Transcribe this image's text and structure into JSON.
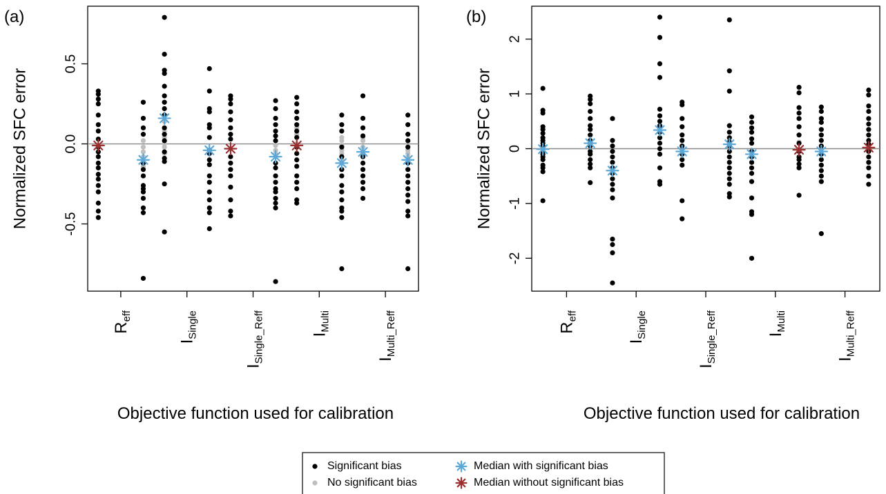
{
  "chart_data": [
    {
      "type": "scatter",
      "panel_label": "(a)",
      "xlabel": "Objective function used for calibration",
      "ylabel": "Normalized SFC error",
      "ylim": [
        -0.92,
        0.86
      ],
      "yticks": [
        -0.5,
        0.0,
        0.5
      ],
      "ytick_labels": [
        "-0.5",
        "0.0",
        "0.5"
      ],
      "reference_line": 0,
      "groups": [
        {
          "label_main": "R",
          "label_sub": "eff",
          "significant": [
            0.33,
            0.31,
            0.28,
            0.25,
            0.18,
            0.12,
            0.08,
            0.03,
            -0.02,
            -0.05,
            -0.08,
            -0.12,
            -0.15,
            -0.19,
            -0.22,
            -0.26,
            -0.3,
            -0.37,
            -0.42,
            -0.46
          ],
          "not_significant": [],
          "median": -0.01,
          "median_significant": false
        },
        {
          "label_main": "R",
          "label_sub": "eff",
          "significant": [
            0.26,
            0.16,
            0.1,
            0.06,
            -0.12,
            -0.16,
            -0.2,
            -0.26,
            -0.28,
            -0.3,
            -0.34,
            -0.4,
            -0.43,
            -0.84
          ],
          "not_significant": [
            0.02,
            -0.02,
            -0.05,
            -0.08,
            -0.14
          ],
          "median": -0.1,
          "median_significant": true
        },
        {
          "label_main": "I",
          "label_sub": "Single",
          "significant": [
            0.79,
            0.56,
            0.46,
            0.44,
            0.36,
            0.3,
            0.26,
            0.22,
            0.18,
            0.1,
            0.06,
            0.02,
            -0.05,
            -0.09,
            -0.11,
            -0.25,
            -0.55
          ],
          "not_significant": [
            0.14,
            0.08,
            0.04,
            0.0,
            -0.02,
            -0.06
          ],
          "median": 0.16,
          "median_significant": true
        },
        {
          "label_main": "I",
          "label_sub": "Single",
          "significant": [
            0.47,
            0.33,
            0.22,
            0.2,
            0.12,
            0.1,
            0.04,
            -0.04,
            -0.06,
            -0.1,
            -0.13,
            -0.2,
            -0.24,
            -0.3,
            -0.35,
            -0.4,
            -0.43,
            -0.53
          ],
          "not_significant": [],
          "median": -0.04,
          "median_significant": true
        },
        {
          "label_main": "I",
          "label_sub": "Single_Reff",
          "significant": [
            0.3,
            0.28,
            0.25,
            0.2,
            0.15,
            0.1,
            0.06,
            0.03,
            -0.08,
            -0.12,
            -0.16,
            -0.2,
            -0.27,
            -0.35,
            -0.42,
            -0.45
          ],
          "not_significant": [],
          "median": -0.03,
          "median_significant": false
        },
        {
          "label_main": "I",
          "label_sub": "Single_Reff",
          "significant": [
            0.27,
            0.22,
            0.16,
            0.12,
            0.08,
            0.05,
            0.02,
            -0.12,
            -0.15,
            -0.2,
            -0.24,
            -0.28,
            -0.3,
            -0.34,
            -0.37,
            -0.4,
            -0.86
          ],
          "not_significant": [
            -0.01,
            -0.04,
            -0.06
          ],
          "median": -0.08,
          "median_significant": true
        },
        {
          "label_main": "I",
          "label_sub": "Multi",
          "significant": [
            0.29,
            0.25,
            0.2,
            0.16,
            0.12,
            0.08,
            0.04,
            -0.02,
            -0.06,
            -0.1,
            -0.14,
            -0.2,
            -0.24,
            -0.28,
            -0.35,
            -0.37
          ],
          "not_significant": [
            0.1,
            0.06,
            0.0
          ],
          "median": -0.01,
          "median_significant": false
        },
        {
          "label_main": "I",
          "label_sub": "Multi",
          "significant": [
            0.18,
            0.12,
            0.08,
            -0.02,
            -0.08,
            -0.16,
            -0.2,
            -0.26,
            -0.3,
            -0.35,
            -0.4,
            -0.42,
            -0.46,
            -0.78
          ],
          "not_significant": [
            0.04,
            0.02,
            -0.01,
            -0.04,
            -0.06,
            -0.1,
            -0.12
          ],
          "median": -0.12,
          "median_significant": true
        },
        {
          "label_main": "I",
          "label_sub": "Multi_Reff",
          "significant": [
            0.3,
            0.16,
            0.1,
            0.05,
            -0.08,
            -0.12,
            -0.16,
            -0.2,
            -0.24,
            -0.28,
            -0.34
          ],
          "not_significant": [
            0.04,
            0.02,
            -0.02,
            -0.05
          ],
          "median": -0.05,
          "median_significant": true
        },
        {
          "label_main": "I",
          "label_sub": "Multi_Reff",
          "significant": [
            0.18,
            0.12,
            0.06,
            0.02,
            -0.02,
            -0.12,
            -0.16,
            -0.2,
            -0.24,
            -0.28,
            -0.32,
            -0.36,
            -0.42,
            -0.45,
            -0.78
          ],
          "not_significant": [
            -0.04,
            -0.06,
            -0.08
          ],
          "median": -0.1,
          "median_significant": true
        }
      ]
    },
    {
      "type": "scatter",
      "panel_label": "(b)",
      "xlabel": "Objective function used for calibration",
      "ylabel": "Normalized SFC error",
      "ylim": [
        -2.6,
        2.6
      ],
      "yticks": [
        -2,
        -1,
        0,
        1,
        2
      ],
      "ytick_labels": [
        "-2",
        "-1",
        "0",
        "1",
        "2"
      ],
      "reference_line": 0,
      "groups": [
        {
          "label_main": "R",
          "label_sub": "eff",
          "significant": [
            1.1,
            0.7,
            0.65,
            0.4,
            0.35,
            0.28,
            0.2,
            0.15,
            0.1,
            0.05,
            -0.05,
            -0.1,
            -0.15,
            -0.2,
            -0.3,
            -0.35,
            -0.42,
            -0.95
          ],
          "not_significant": [],
          "median": -0.01,
          "median_significant": true
        },
        {
          "label_main": "R",
          "label_sub": "eff",
          "significant": [
            0.96,
            0.9,
            0.82,
            0.68,
            0.55,
            0.42,
            0.35,
            0.25,
            0.15,
            0.1,
            0.05,
            -0.05,
            -0.1,
            -0.2,
            -0.28,
            -0.35,
            -0.62
          ],
          "not_significant": [],
          "median": 0.1,
          "median_significant": true
        },
        {
          "label_main": "I",
          "label_sub": "Single",
          "significant": [
            0.55,
            0.15,
            0.05,
            -0.05,
            -0.15,
            -0.25,
            -0.35,
            -0.45,
            -0.55,
            -0.65,
            -0.75,
            -0.9,
            -1.65,
            -1.75,
            -1.9,
            -2.45
          ],
          "not_significant": [],
          "median": -0.4,
          "median_significant": true
        },
        {
          "label_main": "I",
          "label_sub": "Single",
          "significant": [
            2.4,
            2.03,
            1.55,
            1.3,
            0.72,
            0.6,
            0.5,
            0.42,
            0.3,
            0.2,
            0.1,
            0.0,
            -0.1,
            -0.35,
            -0.6,
            -0.65
          ],
          "not_significant": [],
          "median": 0.34,
          "median_significant": true
        },
        {
          "label_main": "I",
          "label_sub": "Single_Reff",
          "significant": [
            0.85,
            0.8,
            0.55,
            0.4,
            0.25,
            0.15,
            0.05,
            -0.1,
            -0.2,
            -0.3,
            -0.95,
            -1.28
          ],
          "not_significant": [],
          "median": -0.05,
          "median_significant": true
        },
        {
          "label_main": "I",
          "label_sub": "Single_Reff",
          "significant": [
            2.35,
            1.42,
            1.05,
            0.42,
            0.3,
            0.2,
            0.12,
            0.05,
            -0.05,
            -0.15,
            -0.25,
            -0.35,
            -0.45,
            -0.55,
            -0.65,
            -0.82,
            -0.88
          ],
          "not_significant": [],
          "median": 0.08,
          "median_significant": true
        },
        {
          "label_main": "I",
          "label_sub": "Multi",
          "significant": [
            0.58,
            0.48,
            0.38,
            0.3,
            0.18,
            0.1,
            -0.05,
            -0.15,
            -0.25,
            -0.35,
            -0.45,
            -0.6,
            -0.9,
            -1.15,
            -1.2,
            -2.0
          ],
          "not_significant": [],
          "median": -0.1,
          "median_significant": true
        },
        {
          "label_main": "I",
          "label_sub": "Multi",
          "significant": [
            1.12,
            1.02,
            0.75,
            0.65,
            0.55,
            0.4,
            0.25,
            0.1,
            -0.05,
            -0.15,
            -0.2,
            -0.28,
            -0.35,
            -0.85
          ],
          "not_significant": [
            0.12
          ],
          "median": -0.02,
          "median_significant": false
        },
        {
          "label_main": "I",
          "label_sub": "Multi_Reff",
          "significant": [
            0.76,
            0.68,
            0.55,
            0.48,
            0.35,
            0.25,
            0.15,
            0.05,
            -0.1,
            -0.2,
            -0.3,
            -0.4,
            -0.5,
            -0.6,
            -1.55
          ],
          "not_significant": [],
          "median": -0.05,
          "median_significant": true
        },
        {
          "label_main": "I",
          "label_sub": "Multi_Reff",
          "significant": [
            1.07,
            0.98,
            0.78,
            0.68,
            0.55,
            0.45,
            0.35,
            0.25,
            0.15,
            0.08,
            -0.05,
            -0.15,
            -0.25,
            -0.35,
            -0.5,
            -0.65
          ],
          "not_significant": [],
          "median": 0.02,
          "median_significant": false
        }
      ]
    }
  ],
  "legend": {
    "items": [
      {
        "label": "Significant bias",
        "symbol": "dot",
        "color": "#000000"
      },
      {
        "label": "No significant bias",
        "symbol": "dot",
        "color": "#bfbfbf"
      },
      {
        "label": "Median with significant bias",
        "symbol": "star",
        "color": "#5ba8d8"
      },
      {
        "label": "Median without significant bias",
        "symbol": "star",
        "color": "#9b2f2f"
      }
    ]
  },
  "colors": {
    "significant": "#000000",
    "not_significant": "#bfbfbf",
    "median_significant": "#5ba8d8",
    "median_not_significant": "#9b2f2f",
    "reference_line": "#888888"
  }
}
